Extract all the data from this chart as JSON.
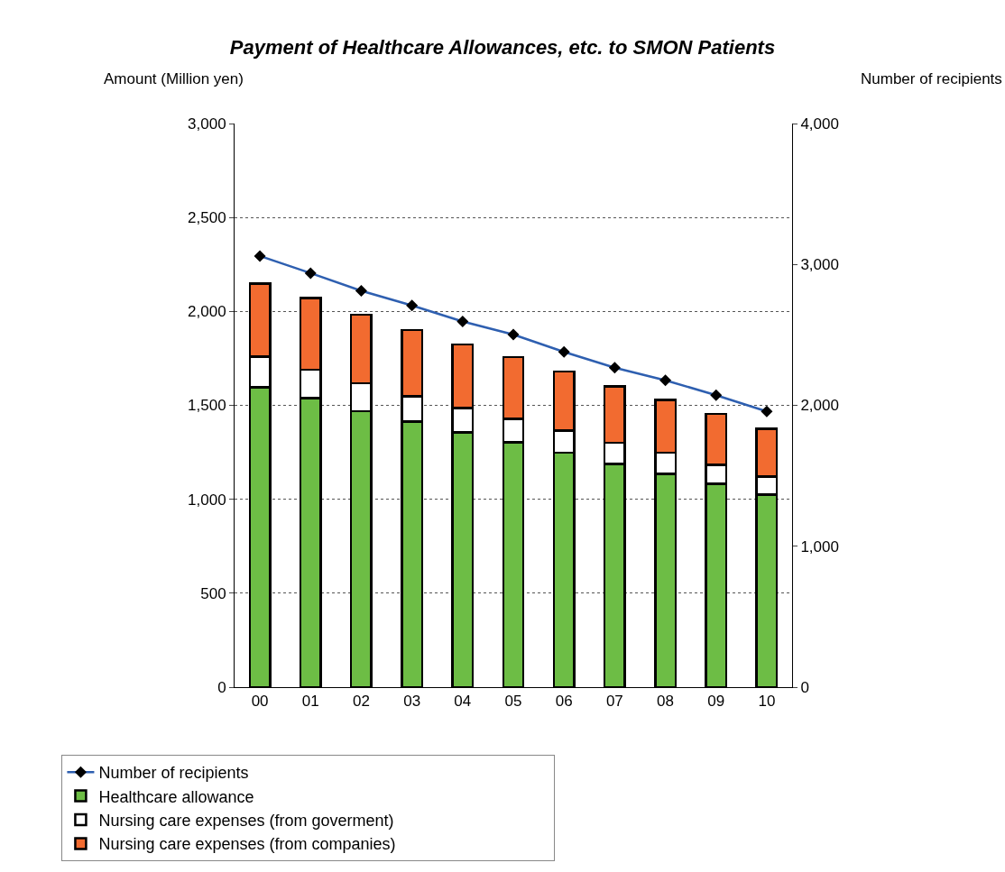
{
  "chart_data": {
    "type": "bar",
    "title": "Payment of Healthcare Allowances, etc. to SMON Patients",
    "ylabel": "Amount (Million yen)",
    "y2label": "Number of recipients",
    "categories": [
      "00",
      "01",
      "02",
      "03",
      "04",
      "05",
      "06",
      "07",
      "08",
      "09",
      "10"
    ],
    "stacked": true,
    "series": [
      {
        "name": "Healthcare allowance",
        "color": "#6dbd45",
        "values": [
          1595,
          1538,
          1470,
          1414,
          1357,
          1303,
          1248,
          1187,
          1135,
          1082,
          1025
        ]
      },
      {
        "name": "Nursing care expenses (from goverment)",
        "color": "#ffffff",
        "values": [
          164,
          152,
          147,
          135,
          129,
          124,
          117,
          113,
          113,
          102,
          96
        ]
      },
      {
        "name": "Nursing care expenses (from companies)",
        "color": "#f26b30",
        "values": [
          389,
          381,
          365,
          351,
          339,
          329,
          314,
          300,
          282,
          270,
          254
        ]
      },
      {
        "name": "Number of recipients",
        "type": "line",
        "axis": "y2",
        "color": "#2e5fb0",
        "marker": "diamond",
        "values": [
          3060,
          2938,
          2813,
          2709,
          2595,
          2502,
          2379,
          2267,
          2178,
          2072,
          1957
        ]
      }
    ],
    "ylim": [
      0,
      3000
    ],
    "yticks": [
      {
        "value": 0,
        "label": "0"
      },
      {
        "value": 500,
        "label": "500"
      },
      {
        "value": 1000,
        "label": "1,000"
      },
      {
        "value": 1500,
        "label": "1,500"
      },
      {
        "value": 2000,
        "label": "2,000"
      },
      {
        "value": 2500,
        "label": "2,500"
      },
      {
        "value": 3000,
        "label": "3,000"
      }
    ],
    "y2lim": [
      0,
      4000
    ],
    "y2ticks": [
      {
        "value": 0,
        "label": "0"
      },
      {
        "value": 1000,
        "label": "1,000"
      },
      {
        "value": 2000,
        "label": "2,000"
      },
      {
        "value": 3000,
        "label": "3,000"
      },
      {
        "value": 4000,
        "label": "4,000"
      }
    ],
    "grid": "y",
    "legend": "bottom"
  }
}
